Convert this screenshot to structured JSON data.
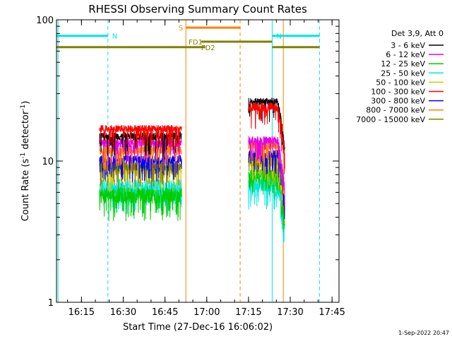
{
  "chart_data": {
    "type": "line",
    "title": "RHESSI Observing Summary Count Rates",
    "xlabel": "Start Time (27-Dec-16 16:06:02)",
    "ylabel_text": "Count Rate (s",
    "ylabel_sup1": "-1",
    "ylabel_mid": " detector",
    "ylabel_sup2": "-1",
    "ylabel_end": ")",
    "yscale": "log",
    "ylim": [
      1,
      100
    ],
    "y_ticks": [
      {
        "value": 1,
        "label": "1"
      },
      {
        "value": 10,
        "label": "10"
      },
      {
        "value": 100,
        "label": "100"
      }
    ],
    "xlim": [
      "16:06:02",
      "17:47:30"
    ],
    "x_ticks": [
      "16:15",
      "16:30",
      "16:45",
      "17:00",
      "17:15",
      "17:30",
      "17:45"
    ],
    "legend_header": "Det 3,9, Att 0",
    "legend_placement": "right",
    "series": [
      {
        "name": "3 - 6 keV",
        "color": "#000000",
        "seg1": [
          14,
          16
        ],
        "seg2": [
          25,
          28
        ]
      },
      {
        "name": "6 - 12 keV",
        "color": "#e600e6",
        "seg1": [
          12.5,
          14.5
        ],
        "seg2": [
          13,
          15
        ]
      },
      {
        "name": "12 - 25 keV",
        "color": "#00cc00",
        "seg1": [
          5,
          6.5
        ],
        "seg2": [
          7,
          9
        ]
      },
      {
        "name": "25 - 50 keV",
        "color": "#00e6e6",
        "seg1": [
          5.5,
          7.5
        ],
        "seg2": [
          6,
          8
        ]
      },
      {
        "name": "50 - 100 keV",
        "color": "#d8c800",
        "seg1": [
          8,
          9.5
        ],
        "seg2": [
          9,
          10.5
        ]
      },
      {
        "name": "100 - 300 keV",
        "color": "#ff0000",
        "seg1": [
          16,
          18
        ],
        "seg2": [
          22,
          26
        ]
      },
      {
        "name": "300 - 800 keV",
        "color": "#0000ff",
        "seg1": [
          9.5,
          11
        ],
        "seg2": [
          10.5,
          12
        ]
      },
      {
        "name": "800 - 7000 keV",
        "color": "#ff8000",
        "seg1": [
          11,
          13
        ],
        "seg2": [
          12,
          14
        ]
      },
      {
        "name": "7000 - 15000 keV",
        "color": "#808000",
        "seg1": [
          8.5,
          10
        ],
        "seg2": [
          10,
          11.5
        ]
      }
    ],
    "data_segments": [
      {
        "start": "16:21:30",
        "end": "16:51:00"
      },
      {
        "start": "17:15:00",
        "end": "17:28:00"
      }
    ],
    "flag_bars": [
      {
        "label": "N",
        "color": "#00e6e6",
        "start": "16:06:02",
        "end": "16:24:30",
        "y": 77
      },
      {
        "label": "N",
        "color": "#00e6e6",
        "start": "17:23:30",
        "end": "17:40:30",
        "y": 77
      },
      {
        "label": "S",
        "color": "#ff8000",
        "start": "16:52:30",
        "end": "17:12:00",
        "y": 88
      },
      {
        "label": "FD1",
        "color": "#808000",
        "start": "16:58:00",
        "end": "17:23:30",
        "y": 70
      },
      {
        "label": "FD2",
        "color": "#808000",
        "start": "16:06:02",
        "end": "16:59:30",
        "y": 64
      },
      {
        "label": "",
        "color": "#808000",
        "start": "17:23:30",
        "end": "17:40:30",
        "y": 64
      }
    ],
    "vlines": [
      {
        "time": "16:06:35",
        "color": "#00e6e6",
        "style": "solid"
      },
      {
        "time": "16:24:30",
        "color": "#00e6e6",
        "style": "dashed"
      },
      {
        "time": "16:52:30",
        "color": "#ff8000",
        "style": "solid"
      },
      {
        "time": "17:12:00",
        "color": "#ff8000",
        "style": "dashed"
      },
      {
        "time": "17:23:30",
        "color": "#00e6e6",
        "style": "solid"
      },
      {
        "time": "17:27:30",
        "color": "#ff8000",
        "style": "solid"
      },
      {
        "time": "17:40:30",
        "color": "#00e6e6",
        "style": "dashed"
      }
    ],
    "footer": "1-Sep-2022 20:47"
  }
}
